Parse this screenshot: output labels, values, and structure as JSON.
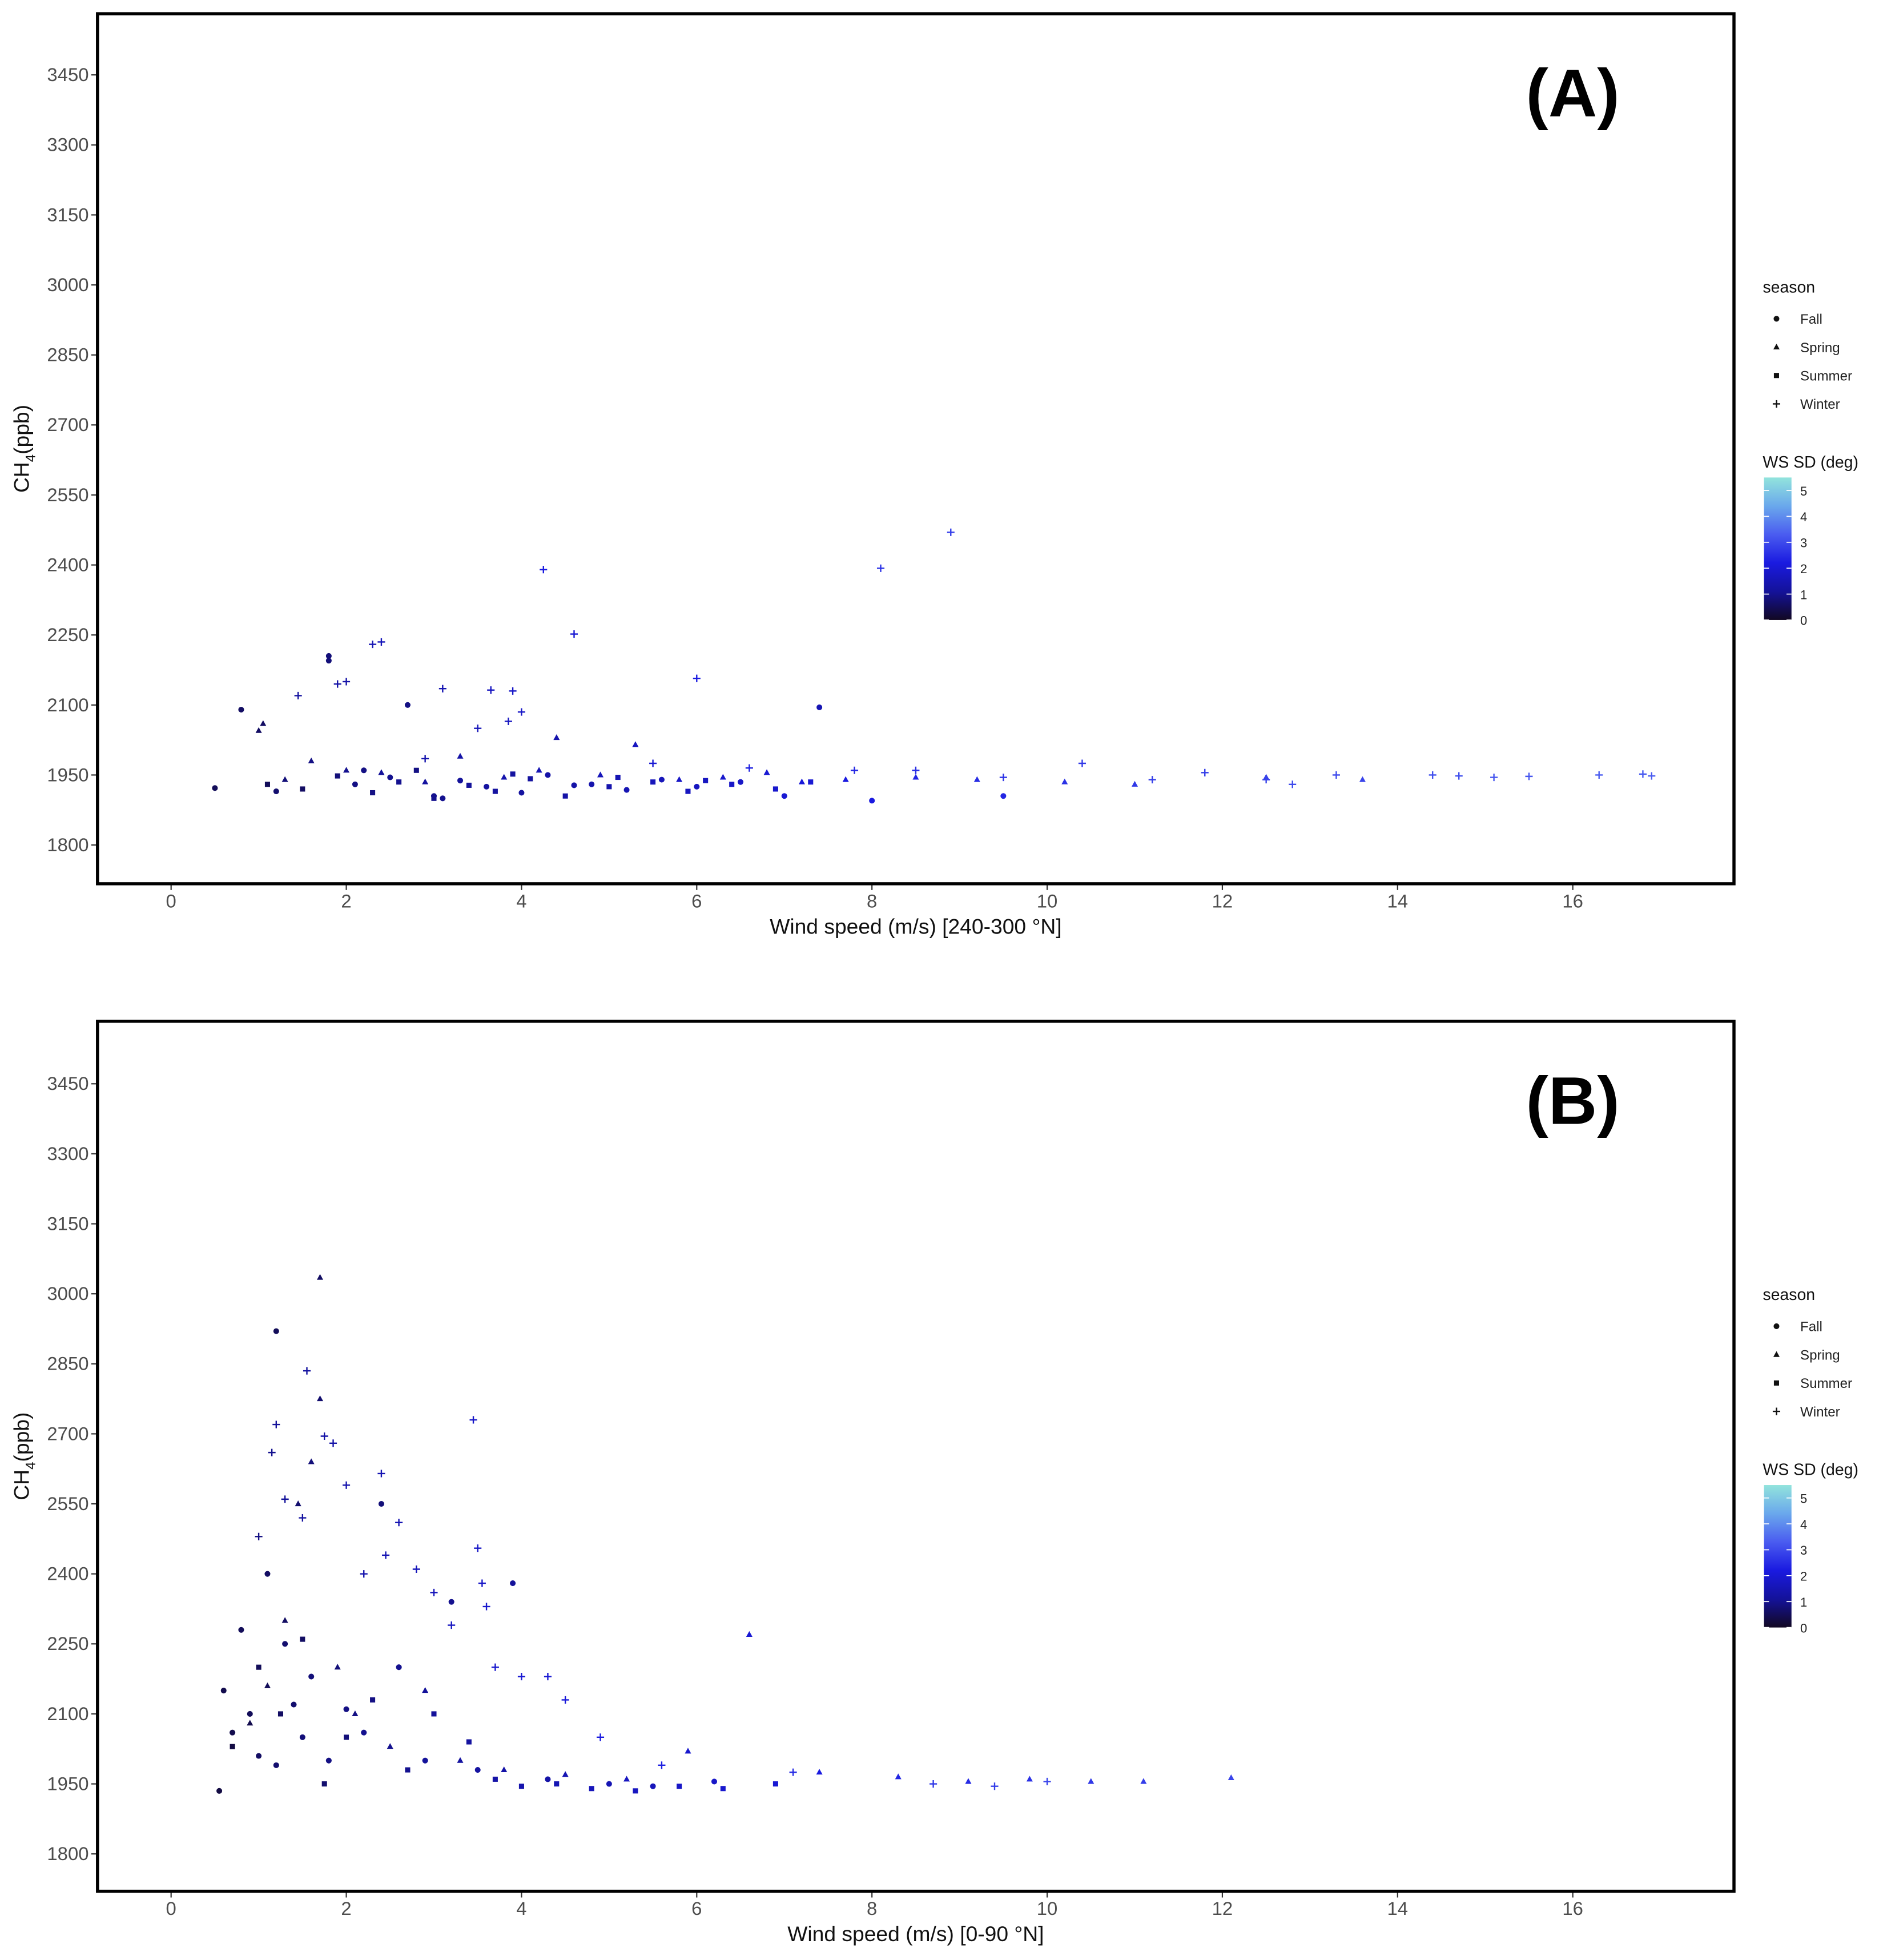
{
  "chart_data": [
    {
      "type": "scatter",
      "panel_label": "(A)",
      "x_label": "Wind speed (m/s) [240-300 °N]",
      "y_label": [
        "CH",
        "4",
        "(ppb)"
      ],
      "xlim": [
        -0.84,
        17.84
      ],
      "xticks": [
        0,
        2,
        4,
        6,
        8,
        10,
        12,
        14,
        16
      ],
      "ylim": [
        1717,
        3581
      ],
      "yticks": [
        1800,
        1950,
        2100,
        2250,
        2400,
        2550,
        2700,
        2850,
        3000,
        3150,
        3300,
        3450
      ],
      "legend_title": "season",
      "colorbar": {
        "title": "WS SD (deg)",
        "lim": [
          0,
          5.5
        ],
        "ticks": [
          0,
          1,
          2,
          3,
          4,
          5
        ],
        "colors": [
          "#120822",
          "#14129a",
          "#1a1ae0",
          "#4a5cf0",
          "#6aa8ec",
          "#92e4dc"
        ]
      },
      "series": [
        {
          "name": "Fall",
          "shape": "circle",
          "x": [
            0.5,
            0.8,
            1.2,
            1.8,
            1.8,
            2.1,
            2.5,
            2.7,
            3.0,
            3.3,
            3.6,
            4.0,
            4.3,
            4.8,
            5.2,
            5.6,
            6.0,
            6.5,
            7.0,
            7.4,
            8.0,
            9.5,
            2.2,
            3.1,
            4.6
          ],
          "values": [
            1922,
            2090,
            1915,
            2205,
            2195,
            1930,
            1945,
            2100,
            1905,
            1938,
            1925,
            1912,
            1950,
            1930,
            1918,
            1940,
            1925,
            1935,
            1905,
            2095,
            1895,
            1905,
            1960,
            1900,
            1928
          ],
          "ws_sd": [
            0.5,
            0.6,
            0.7,
            0.8,
            0.8,
            0.9,
            1.0,
            0.9,
            1.0,
            1.1,
            1.2,
            1.2,
            1.3,
            1.4,
            1.5,
            1.6,
            1.7,
            1.8,
            2.0,
            1.5,
            2.2,
            2.4,
            0.9,
            1.0,
            1.3
          ]
        },
        {
          "name": "Spring",
          "shape": "triangle",
          "x": [
            1.0,
            1.05,
            1.3,
            1.6,
            2.0,
            2.4,
            2.9,
            3.3,
            3.8,
            4.2,
            4.4,
            4.9,
            5.3,
            5.8,
            6.3,
            6.8,
            7.2,
            7.7,
            8.5,
            9.2,
            10.2,
            11.0,
            12.5,
            13.6
          ],
          "values": [
            2045,
            2060,
            1940,
            1980,
            1960,
            1955,
            1935,
            1990,
            1945,
            1960,
            2030,
            1950,
            2015,
            1940,
            1945,
            1955,
            1935,
            1940,
            1945,
            1940,
            1935,
            1930,
            1945,
            1940
          ],
          "ws_sd": [
            0.6,
            0.6,
            0.8,
            0.9,
            1.0,
            1.1,
            1.2,
            1.3,
            1.4,
            1.5,
            1.4,
            1.6,
            1.7,
            1.8,
            1.9,
            2.0,
            2.1,
            2.2,
            2.4,
            2.5,
            2.6,
            2.7,
            2.8,
            2.9
          ]
        },
        {
          "name": "Summer",
          "shape": "square",
          "x": [
            1.1,
            1.5,
            1.9,
            2.3,
            2.6,
            3.0,
            3.4,
            3.7,
            4.1,
            4.5,
            5.0,
            5.5,
            5.9,
            6.4,
            6.9,
            7.3,
            2.8,
            3.9,
            5.1,
            6.1
          ],
          "values": [
            1930,
            1920,
            1948,
            1912,
            1935,
            1900,
            1928,
            1915,
            1942,
            1905,
            1925,
            1935,
            1915,
            1930,
            1920,
            1935,
            1960,
            1952,
            1945,
            1938
          ],
          "ws_sd": [
            0.5,
            0.6,
            0.8,
            0.9,
            1.0,
            1.0,
            1.1,
            1.2,
            1.2,
            1.3,
            1.4,
            1.6,
            1.7,
            1.8,
            1.9,
            2.0,
            0.9,
            1.2,
            1.5,
            1.7
          ]
        },
        {
          "name": "Winter",
          "shape": "plus",
          "x": [
            1.45,
            1.9,
            2.0,
            2.3,
            2.4,
            3.1,
            3.5,
            3.65,
            3.85,
            3.9,
            4.0,
            4.25,
            4.6,
            6.0,
            8.1,
            8.9,
            8.5,
            9.5,
            10.4,
            11.2,
            11.8,
            12.5,
            12.8,
            13.3,
            14.4,
            14.7,
            15.1,
            15.5,
            16.3,
            16.8,
            16.9,
            7.8,
            6.6,
            5.5,
            2.9
          ],
          "values": [
            2120,
            2145,
            2150,
            2230,
            2235,
            2135,
            2050,
            2132,
            2065,
            2130,
            2085,
            2390,
            2252,
            2157,
            2393,
            2470,
            1960,
            1945,
            1975,
            1940,
            1955,
            1940,
            1930,
            1950,
            1950,
            1948,
            1945,
            1947,
            1950,
            1952,
            1948,
            1960,
            1965,
            1975,
            1985
          ],
          "ws_sd": [
            1.2,
            1.3,
            1.3,
            1.5,
            1.6,
            1.5,
            1.6,
            1.7,
            1.7,
            1.8,
            1.8,
            2.2,
            2.0,
            2.2,
            2.6,
            2.8,
            2.5,
            2.6,
            2.7,
            2.8,
            2.8,
            2.9,
            3.0,
            3.0,
            3.1,
            3.1,
            3.2,
            3.2,
            3.3,
            3.3,
            3.3,
            2.4,
            2.3,
            2.0,
            1.4
          ]
        }
      ]
    },
    {
      "type": "scatter",
      "panel_label": "(B)",
      "x_label": "Wind speed (m/s) [0-90 °N]",
      "y_label": [
        "CH",
        "4",
        "(ppb)"
      ],
      "xlim": [
        -0.84,
        17.84
      ],
      "xticks": [
        0,
        2,
        4,
        6,
        8,
        10,
        12,
        14,
        16
      ],
      "ylim": [
        1720,
        3584
      ],
      "yticks": [
        1800,
        1950,
        2100,
        2250,
        2400,
        2550,
        2700,
        2850,
        3000,
        3150,
        3300,
        3450
      ],
      "legend_title": "season",
      "colorbar": {
        "title": "WS SD (deg)",
        "lim": [
          0,
          5.5
        ],
        "ticks": [
          0,
          1,
          2,
          3,
          4,
          5
        ],
        "colors": [
          "#120822",
          "#14129a",
          "#1a1ae0",
          "#4a5cf0",
          "#6aa8ec",
          "#92e4dc"
        ]
      },
      "series": [
        {
          "name": "Fall",
          "shape": "circle",
          "x": [
            0.55,
            0.6,
            0.7,
            0.8,
            0.9,
            1.0,
            1.1,
            1.2,
            1.2,
            1.3,
            1.4,
            1.5,
            1.6,
            1.8,
            2.0,
            2.2,
            2.4,
            2.6,
            2.9,
            3.2,
            3.5,
            3.9,
            4.3,
            5.0,
            5.5,
            6.2
          ],
          "values": [
            1935,
            2150,
            2060,
            2280,
            2100,
            2010,
            2400,
            2920,
            1990,
            2250,
            2120,
            2050,
            2180,
            2000,
            2110,
            2060,
            2550,
            2200,
            2000,
            2340,
            1980,
            2380,
            1960,
            1950,
            1945,
            1955
          ],
          "ws_sd": [
            0.3,
            0.4,
            0.4,
            0.5,
            0.5,
            0.6,
            0.6,
            0.5,
            0.7,
            0.7,
            0.7,
            0.8,
            0.8,
            0.9,
            0.9,
            1.0,
            0.8,
            1.0,
            1.1,
            1.0,
            1.2,
            1.1,
            1.3,
            1.5,
            1.6,
            1.8
          ]
        },
        {
          "name": "Spring",
          "shape": "triangle",
          "x": [
            0.9,
            1.1,
            1.3,
            1.45,
            1.6,
            1.7,
            1.7,
            1.9,
            2.1,
            2.5,
            2.9,
            3.3,
            3.8,
            4.5,
            5.2,
            5.9,
            6.6,
            7.4,
            8.3,
            9.1,
            9.8,
            10.5,
            11.1,
            12.1
          ],
          "values": [
            2080,
            2160,
            2300,
            2550,
            2640,
            3035,
            2775,
            2200,
            2100,
            2030,
            2150,
            2000,
            1980,
            1970,
            1960,
            2020,
            2270,
            1975,
            1965,
            1955,
            1960,
            1955,
            1955,
            1963
          ],
          "ws_sd": [
            0.4,
            0.5,
            0.6,
            0.7,
            0.8,
            0.6,
            0.7,
            0.8,
            0.9,
            1.0,
            1.1,
            1.2,
            1.3,
            1.5,
            1.7,
            1.9,
            2.0,
            2.2,
            2.4,
            2.5,
            2.6,
            2.7,
            2.8,
            2.9
          ]
        },
        {
          "name": "Summer",
          "shape": "square",
          "x": [
            0.7,
            1.0,
            1.25,
            1.5,
            1.75,
            2.0,
            2.3,
            2.7,
            3.0,
            3.4,
            3.7,
            4.0,
            4.4,
            4.8,
            5.3,
            5.8,
            6.3,
            6.9
          ],
          "values": [
            2030,
            2200,
            2100,
            2260,
            1950,
            2050,
            2130,
            1980,
            2100,
            2040,
            1960,
            1945,
            1950,
            1940,
            1935,
            1945,
            1940,
            1950
          ],
          "ws_sd": [
            0.3,
            0.5,
            0.6,
            0.6,
            0.7,
            0.8,
            0.9,
            1.0,
            1.1,
            1.2,
            1.3,
            1.4,
            1.5,
            1.6,
            1.7,
            1.8,
            1.9,
            2.0
          ]
        },
        {
          "name": "Winter",
          "shape": "plus",
          "x": [
            1.0,
            1.15,
            1.2,
            1.3,
            1.5,
            1.55,
            1.75,
            1.85,
            2.0,
            2.2,
            2.4,
            2.45,
            2.6,
            2.8,
            3.0,
            3.2,
            3.45,
            3.5,
            3.55,
            3.6,
            3.7,
            4.0,
            4.3,
            4.5,
            4.9,
            5.6,
            7.1,
            8.7,
            9.4,
            10.0
          ],
          "values": [
            2480,
            2660,
            2720,
            2560,
            2520,
            2835,
            2695,
            2680,
            2590,
            2400,
            2615,
            2440,
            2510,
            2410,
            2360,
            2290,
            2730,
            2455,
            2380,
            2330,
            2200,
            2180,
            2180,
            2130,
            2050,
            1990,
            1975,
            1950,
            1945,
            1955
          ],
          "ws_sd": [
            0.9,
            1.0,
            1.1,
            1.1,
            1.2,
            1.2,
            1.3,
            1.3,
            1.4,
            1.4,
            1.5,
            1.5,
            1.5,
            1.6,
            1.6,
            1.7,
            1.8,
            1.8,
            1.8,
            1.9,
            1.9,
            2.0,
            2.0,
            2.1,
            2.2,
            2.3,
            2.5,
            2.7,
            2.8,
            2.9
          ]
        }
      ]
    }
  ]
}
